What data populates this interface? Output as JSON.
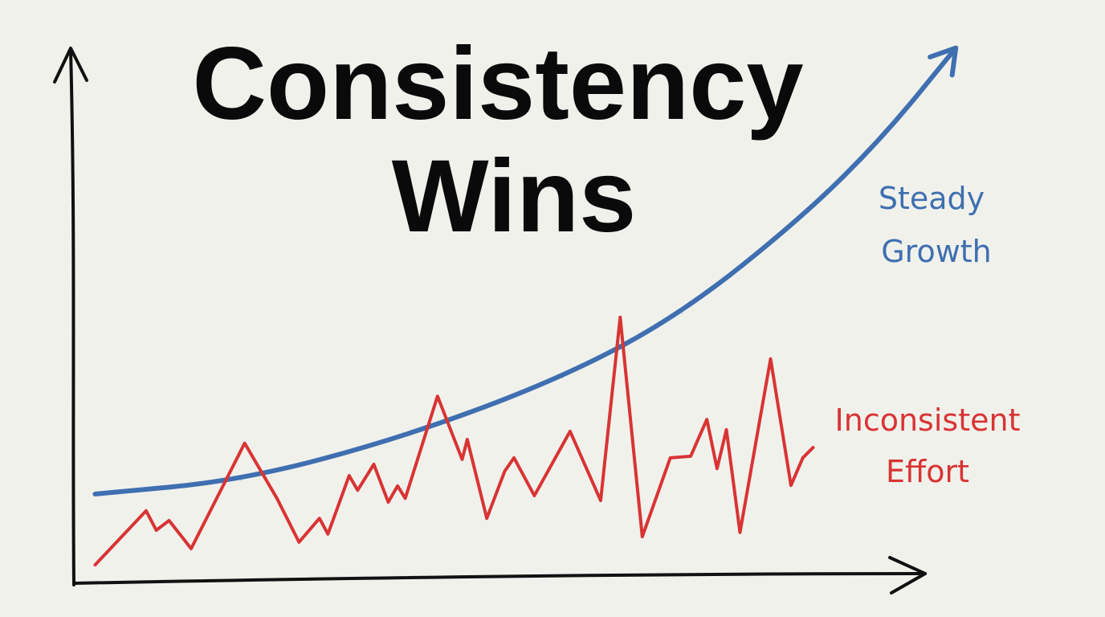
{
  "title_lines": [
    "Consistency",
    "Wins"
  ],
  "colors": {
    "background": "#f1f1ec",
    "axis": "#111111",
    "steady": "#3f6fb0",
    "inconsistent": "#d83434",
    "title": "#0a0a0a"
  },
  "chart_data": {
    "type": "line",
    "title": "Consistency Wins",
    "xlabel": "",
    "ylabel": "",
    "xlim": [
      0,
      105
    ],
    "ylim": [
      0,
      100
    ],
    "grid": false,
    "axes_arrows": true,
    "tick_labels": false,
    "series": [
      {
        "name": "Steady Growth",
        "label_lines": [
          "Steady",
          "Growth"
        ],
        "color": "#3f6fb0",
        "arrow_end": true,
        "points": [
          [
            2.5,
            16.8
          ],
          [
            19.7,
            19.3
          ],
          [
            38.6,
            27.2
          ],
          [
            57.5,
            38.3
          ],
          [
            71.6,
            50.2
          ],
          [
            85.8,
            68.1
          ],
          [
            95.3,
            82.9
          ],
          [
            103.8,
            99.3
          ]
        ]
      },
      {
        "name": "Inconsistent Effort",
        "label_lines": [
          "Inconsistent",
          "Effort"
        ],
        "color": "#d83434",
        "arrow_end": false,
        "points": [
          [
            2.5,
            3.7
          ],
          [
            8.5,
            13.7
          ],
          [
            9.7,
            10.1
          ],
          [
            11.2,
            11.9
          ],
          [
            13.8,
            6.7
          ],
          [
            20.1,
            26.2
          ],
          [
            23.9,
            16.0
          ],
          [
            26.5,
            7.9
          ],
          [
            28.9,
            12.3
          ],
          [
            29.9,
            9.4
          ],
          [
            32.4,
            20.2
          ],
          [
            33.4,
            17.5
          ],
          [
            35.3,
            22.3
          ],
          [
            37.0,
            15.3
          ],
          [
            38.1,
            18.3
          ],
          [
            39.0,
            16.0
          ],
          [
            42.8,
            34.9
          ],
          [
            45.7,
            23.2
          ],
          [
            46.3,
            26.9
          ],
          [
            48.6,
            12.3
          ],
          [
            50.7,
            21.0
          ],
          [
            51.8,
            23.5
          ],
          [
            54.2,
            16.5
          ],
          [
            58.4,
            28.4
          ],
          [
            62.0,
            15.6
          ],
          [
            64.3,
            49.5
          ],
          [
            66.9,
            8.9
          ],
          [
            70.2,
            23.5
          ],
          [
            72.6,
            23.8
          ],
          [
            74.5,
            30.6
          ],
          [
            75.7,
            21.5
          ],
          [
            76.8,
            28.7
          ],
          [
            78.4,
            9.7
          ],
          [
            82.0,
            41.8
          ],
          [
            84.4,
            18.4
          ],
          [
            85.8,
            23.5
          ],
          [
            87.0,
            25.4
          ]
        ]
      }
    ]
  }
}
